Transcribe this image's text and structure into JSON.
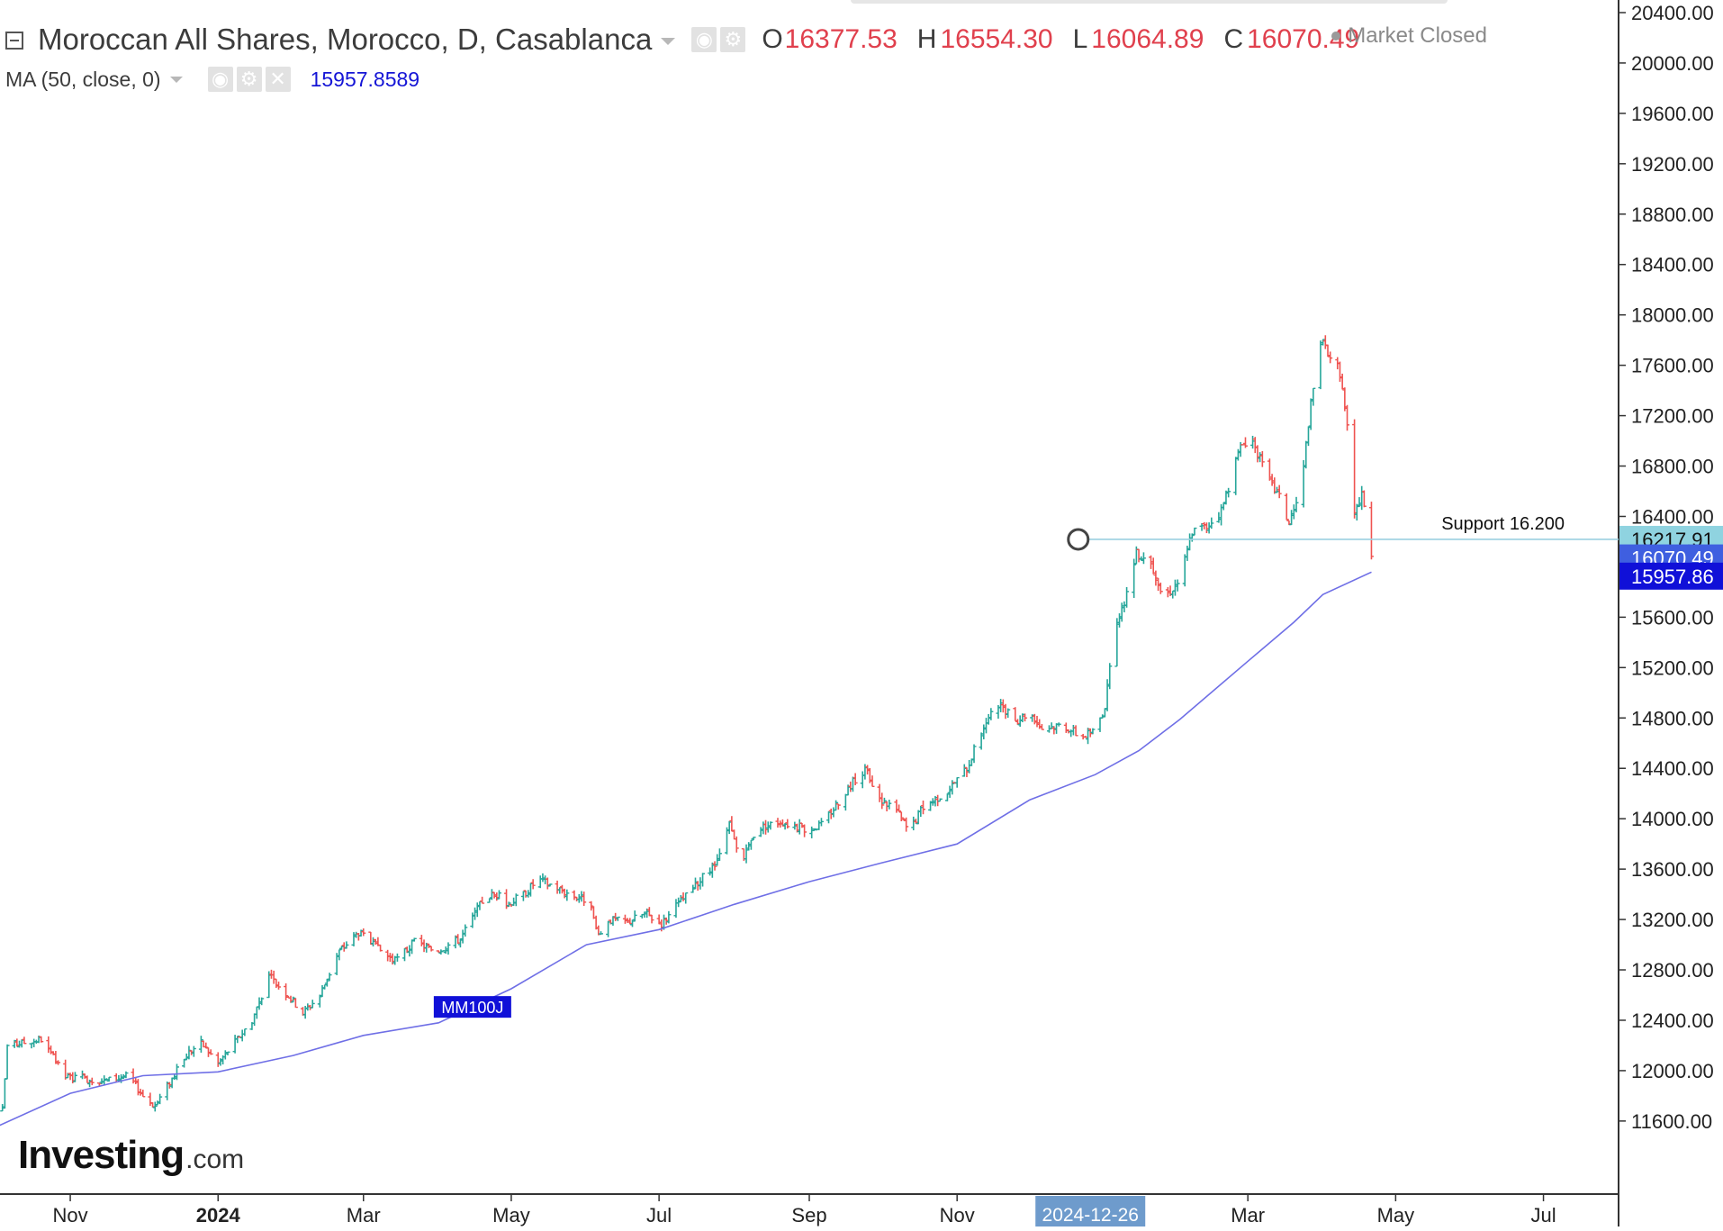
{
  "legend": {
    "symbol": "Moroccan All Shares, Morocco, D, Casablanca",
    "open_key": "O",
    "open": "16377.53",
    "high_key": "H",
    "high": "16554.30",
    "low_key": "L",
    "low": "16064.89",
    "close_key": "C",
    "close": "16070.49",
    "ma_label": "MA (50, close, 0)",
    "ma_value": "15957.8589",
    "status": "Market Closed"
  },
  "watermark": {
    "main": "Investing",
    "sub": ".com"
  },
  "colors": {
    "up": "#26a69a",
    "down": "#ef5350",
    "ma_line": "#6f6fe6",
    "support_line": "#9bd1e0",
    "support_tag": "#8fd3e0",
    "close_tag": "#3f5fe0",
    "ma_tag": "#1010d8",
    "date_tag": "#6e9bcc",
    "ohlc_value": "#e0404d"
  },
  "chart_data": {
    "type": "ohlc",
    "title": "Moroccan All Shares, Morocco, D, Casablanca",
    "y_axis": {
      "ticks": [
        11600,
        12000,
        12400,
        12800,
        13200,
        13600,
        14000,
        14400,
        14800,
        15200,
        15600,
        16000,
        16400,
        16800,
        17200,
        17600,
        18000,
        18400,
        18800,
        19200,
        19600,
        20000,
        20400
      ],
      "tick_labels": [
        "11600.00",
        "12000.00",
        "12400.00",
        "12800.00",
        "13200.00",
        "13600.00",
        "14000.00",
        "14400.00",
        "14800.00",
        "15200.00",
        "15600.00",
        "16000.00",
        "16400.00",
        "16800.00",
        "17200.00",
        "17600.00",
        "18000.00",
        "18400.00",
        "18800.00",
        "19200.00",
        "19600.00",
        "20000.00",
        "20400.00"
      ],
      "range": [
        11020,
        20500
      ],
      "position": "right"
    },
    "x_axis": {
      "labels": [
        "Nov",
        "2024",
        "Mar",
        "May",
        "Jul",
        "Sep",
        "Nov",
        "Mar",
        "May",
        "Jul"
      ],
      "label_dates": [
        "2023-11-01",
        "2024-01-01",
        "2024-03-01",
        "2024-05-01",
        "2024-07-01",
        "2024-09-01",
        "2024-11-01",
        "2025-03-01",
        "2025-05-01",
        "2025-07-01"
      ],
      "bold_labels": [
        "2024"
      ],
      "range": [
        "2023-10-03",
        "2025-08-01"
      ],
      "highlighted_date": "2024-12-26"
    },
    "price_path": [
      [
        "2023-10-04",
        11680
      ],
      [
        "2023-10-06",
        12200
      ],
      [
        "2023-10-20",
        12250
      ],
      [
        "2023-10-30",
        11950
      ],
      [
        "2023-11-15",
        11920
      ],
      [
        "2023-11-25",
        11960
      ],
      [
        "2023-12-01",
        11800
      ],
      [
        "2023-12-06",
        11720
      ],
      [
        "2023-12-10",
        11850
      ],
      [
        "2023-12-20",
        12150
      ],
      [
        "2023-12-25",
        12220
      ],
      [
        "2024-01-01",
        12060
      ],
      [
        "2024-01-15",
        12400
      ],
      [
        "2024-01-22",
        12750
      ],
      [
        "2024-01-29",
        12620
      ],
      [
        "2024-02-05",
        12460
      ],
      [
        "2024-02-12",
        12600
      ],
      [
        "2024-02-20",
        12950
      ],
      [
        "2024-02-28",
        13100
      ],
      [
        "2024-03-06",
        12980
      ],
      [
        "2024-03-14",
        12870
      ],
      [
        "2024-03-22",
        13020
      ],
      [
        "2024-03-31",
        12950
      ],
      [
        "2024-04-10",
        13050
      ],
      [
        "2024-04-20",
        13380
      ],
      [
        "2024-04-25",
        13400
      ],
      [
        "2024-04-29",
        13320
      ],
      [
        "2024-05-06",
        13400
      ],
      [
        "2024-05-12",
        13520
      ],
      [
        "2024-05-18",
        13470
      ],
      [
        "2024-05-25",
        13400
      ],
      [
        "2024-06-02",
        13350
      ],
      [
        "2024-06-06",
        13050
      ],
      [
        "2024-06-10",
        13200
      ],
      [
        "2024-06-18",
        13180
      ],
      [
        "2024-06-25",
        13250
      ],
      [
        "2024-07-02",
        13170
      ],
      [
        "2024-07-15",
        13450
      ],
      [
        "2024-07-25",
        13650
      ],
      [
        "2024-07-30",
        13950
      ],
      [
        "2024-08-04",
        13640
      ],
      [
        "2024-08-10",
        13920
      ],
      [
        "2024-08-20",
        13980
      ],
      [
        "2024-08-30",
        13920
      ],
      [
        "2024-09-06",
        13950
      ],
      [
        "2024-09-16",
        14220
      ],
      [
        "2024-09-24",
        14400
      ],
      [
        "2024-09-29",
        14150
      ],
      [
        "2024-10-06",
        14100
      ],
      [
        "2024-10-12",
        13900
      ],
      [
        "2024-10-18",
        14100
      ],
      [
        "2024-10-28",
        14220
      ],
      [
        "2024-11-05",
        14400
      ],
      [
        "2024-11-12",
        14740
      ],
      [
        "2024-11-18",
        14900
      ],
      [
        "2024-11-25",
        14780
      ],
      [
        "2024-12-01",
        14850
      ],
      [
        "2024-12-06",
        14720
      ],
      [
        "2024-12-15",
        14750
      ],
      [
        "2024-12-22",
        14650
      ],
      [
        "2024-12-28",
        14700
      ],
      [
        "2025-01-01",
        14900
      ],
      [
        "2025-01-05",
        15450
      ],
      [
        "2025-01-10",
        15800
      ],
      [
        "2025-01-14",
        16100
      ],
      [
        "2025-01-20",
        16050
      ],
      [
        "2025-01-25",
        15750
      ],
      [
        "2025-02-01",
        15900
      ],
      [
        "2025-02-06",
        16280
      ],
      [
        "2025-02-12",
        16320
      ],
      [
        "2025-02-18",
        16450
      ],
      [
        "2025-02-22",
        16700
      ],
      [
        "2025-02-26",
        16950
      ],
      [
        "2025-03-02",
        17050
      ],
      [
        "2025-03-08",
        16750
      ],
      [
        "2025-03-14",
        16550
      ],
      [
        "2025-03-18",
        16350
      ],
      [
        "2025-03-23",
        16600
      ],
      [
        "2025-03-26",
        17150
      ],
      [
        "2025-03-31",
        17800
      ],
      [
        "2025-04-05",
        17650
      ],
      [
        "2025-04-08",
        17550
      ],
      [
        "2025-04-11",
        17100
      ],
      [
        "2025-04-14",
        16400
      ],
      [
        "2025-04-17",
        16600
      ],
      [
        "2025-04-21",
        16070
      ]
    ],
    "ma": {
      "name": "MA (50, close, 0)",
      "label": "MM100J",
      "label_date": "2024-04-15",
      "points": [
        [
          "2023-10-01",
          11550
        ],
        [
          "2023-11-01",
          11820
        ],
        [
          "2023-12-01",
          11960
        ],
        [
          "2024-01-01",
          11990
        ],
        [
          "2024-02-01",
          12120
        ],
        [
          "2024-03-01",
          12280
        ],
        [
          "2024-04-01",
          12380
        ],
        [
          "2024-05-01",
          12650
        ],
        [
          "2024-06-01",
          13000
        ],
        [
          "2024-07-01",
          13120
        ],
        [
          "2024-08-01",
          13320
        ],
        [
          "2024-09-01",
          13500
        ],
        [
          "2024-10-01",
          13650
        ],
        [
          "2024-11-01",
          13800
        ],
        [
          "2024-12-01",
          14150
        ],
        [
          "2024-12-28",
          14350
        ],
        [
          "2025-01-15",
          14540
        ],
        [
          "2025-02-01",
          14790
        ],
        [
          "2025-03-01",
          15250
        ],
        [
          "2025-03-20",
          15560
        ],
        [
          "2025-04-01",
          15780
        ],
        [
          "2025-04-21",
          15957.86
        ]
      ]
    },
    "support": {
      "value": 16217.91,
      "label": "Support 16.200",
      "start_date": "2024-12-21",
      "tag": "16217.91"
    },
    "price_tags": [
      {
        "value": 16070.49,
        "text": "16070.49",
        "kind": "close"
      },
      {
        "value": 15957.86,
        "text": "15957.86",
        "kind": "ma"
      }
    ],
    "grid": false,
    "legend_position": "top-left"
  }
}
